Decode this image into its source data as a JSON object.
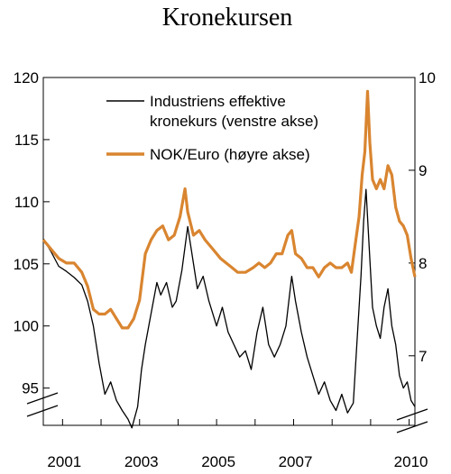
{
  "chart_data": {
    "type": "line",
    "title": "Kronekursen",
    "x_ticks": [
      "2001",
      "2003",
      "2005",
      "2007",
      "2010"
    ],
    "x_range": [
      2000.5,
      2010.15
    ],
    "x_tick_values": [
      2001,
      2003,
      2005,
      2007,
      2010
    ],
    "left_axis": {
      "ticks": [
        95,
        100,
        105,
        110,
        115,
        120
      ],
      "range": [
        92,
        120
      ]
    },
    "right_axis": {
      "ticks": [
        7,
        8,
        9,
        10
      ],
      "range": [
        6.25,
        10
      ]
    },
    "legend_placement": "top-center",
    "series": [
      {
        "name": "Industriens effektive kronekurs (venstre akse)",
        "axis": "left",
        "color": "#000000",
        "points": [
          [
            2000.5,
            107.0
          ],
          [
            2000.7,
            106.0
          ],
          [
            2000.9,
            104.8
          ],
          [
            2001.1,
            104.4
          ],
          [
            2001.3,
            103.9
          ],
          [
            2001.5,
            103.3
          ],
          [
            2001.65,
            102.0
          ],
          [
            2001.8,
            100.0
          ],
          [
            2001.95,
            97.0
          ],
          [
            2002.1,
            94.5
          ],
          [
            2002.25,
            95.5
          ],
          [
            2002.4,
            94.0
          ],
          [
            2002.55,
            93.2
          ],
          [
            2002.7,
            92.5
          ],
          [
            2002.8,
            91.8
          ],
          [
            2002.95,
            93.5
          ],
          [
            2003.05,
            96.5
          ],
          [
            2003.15,
            98.5
          ],
          [
            2003.3,
            101.0
          ],
          [
            2003.45,
            103.5
          ],
          [
            2003.55,
            102.5
          ],
          [
            2003.7,
            103.5
          ],
          [
            2003.85,
            101.5
          ],
          [
            2003.95,
            102.0
          ],
          [
            2004.1,
            104.5
          ],
          [
            2004.25,
            108.0
          ],
          [
            2004.35,
            106.0
          ],
          [
            2004.5,
            103.0
          ],
          [
            2004.65,
            104.0
          ],
          [
            2004.8,
            102.0
          ],
          [
            2005.0,
            100.0
          ],
          [
            2005.15,
            101.5
          ],
          [
            2005.3,
            99.5
          ],
          [
            2005.45,
            98.5
          ],
          [
            2005.6,
            97.5
          ],
          [
            2005.75,
            98.0
          ],
          [
            2005.9,
            96.5
          ],
          [
            2006.05,
            99.5
          ],
          [
            2006.2,
            101.5
          ],
          [
            2006.35,
            98.5
          ],
          [
            2006.5,
            97.5
          ],
          [
            2006.65,
            98.5
          ],
          [
            2006.8,
            100.0
          ],
          [
            2006.95,
            104.0
          ],
          [
            2007.05,
            102.0
          ],
          [
            2007.2,
            99.5
          ],
          [
            2007.35,
            97.5
          ],
          [
            2007.5,
            96.0
          ],
          [
            2007.65,
            94.5
          ],
          [
            2007.8,
            95.5
          ],
          [
            2007.95,
            94.0
          ],
          [
            2008.1,
            93.2
          ],
          [
            2008.25,
            94.5
          ],
          [
            2008.4,
            93.0
          ],
          [
            2008.55,
            93.8
          ],
          [
            2008.65,
            99.0
          ],
          [
            2008.75,
            104.0
          ],
          [
            2008.82,
            108.5
          ],
          [
            2008.88,
            111.0
          ],
          [
            2008.95,
            107.0
          ],
          [
            2009.05,
            101.5
          ],
          [
            2009.15,
            100.0
          ],
          [
            2009.25,
            99.0
          ],
          [
            2009.35,
            101.5
          ],
          [
            2009.45,
            103.0
          ],
          [
            2009.55,
            100.0
          ],
          [
            2009.65,
            98.5
          ],
          [
            2009.75,
            96.0
          ],
          [
            2009.85,
            95.0
          ],
          [
            2009.95,
            95.5
          ],
          [
            2010.05,
            94.0
          ],
          [
            2010.15,
            93.5
          ]
        ]
      },
      {
        "name": "NOK/Euro (høyre akse)",
        "axis": "right",
        "color": "#d98530",
        "points": [
          [
            2000.5,
            8.25
          ],
          [
            2000.7,
            8.15
          ],
          [
            2000.9,
            8.05
          ],
          [
            2001.1,
            8.0
          ],
          [
            2001.3,
            8.0
          ],
          [
            2001.5,
            7.9
          ],
          [
            2001.65,
            7.75
          ],
          [
            2001.8,
            7.5
          ],
          [
            2001.95,
            7.45
          ],
          [
            2002.1,
            7.45
          ],
          [
            2002.25,
            7.5
          ],
          [
            2002.4,
            7.4
          ],
          [
            2002.55,
            7.3
          ],
          [
            2002.7,
            7.3
          ],
          [
            2002.85,
            7.4
          ],
          [
            2003.0,
            7.6
          ],
          [
            2003.15,
            8.1
          ],
          [
            2003.3,
            8.25
          ],
          [
            2003.45,
            8.35
          ],
          [
            2003.6,
            8.4
          ],
          [
            2003.75,
            8.25
          ],
          [
            2003.9,
            8.3
          ],
          [
            2004.05,
            8.5
          ],
          [
            2004.18,
            8.8
          ],
          [
            2004.25,
            8.55
          ],
          [
            2004.4,
            8.3
          ],
          [
            2004.55,
            8.35
          ],
          [
            2004.7,
            8.25
          ],
          [
            2004.9,
            8.15
          ],
          [
            2005.1,
            8.05
          ],
          [
            2005.25,
            8.0
          ],
          [
            2005.4,
            7.95
          ],
          [
            2005.55,
            7.9
          ],
          [
            2005.75,
            7.9
          ],
          [
            2005.95,
            7.95
          ],
          [
            2006.1,
            8.0
          ],
          [
            2006.25,
            7.95
          ],
          [
            2006.4,
            8.0
          ],
          [
            2006.55,
            8.1
          ],
          [
            2006.7,
            8.1
          ],
          [
            2006.85,
            8.3
          ],
          [
            2006.95,
            8.35
          ],
          [
            2007.05,
            8.1
          ],
          [
            2007.2,
            8.05
          ],
          [
            2007.35,
            7.95
          ],
          [
            2007.5,
            7.95
          ],
          [
            2007.65,
            7.85
          ],
          [
            2007.8,
            7.95
          ],
          [
            2007.95,
            8.0
          ],
          [
            2008.1,
            7.95
          ],
          [
            2008.25,
            7.95
          ],
          [
            2008.4,
            8.0
          ],
          [
            2008.5,
            7.9
          ],
          [
            2008.6,
            8.2
          ],
          [
            2008.7,
            8.5
          ],
          [
            2008.78,
            8.95
          ],
          [
            2008.85,
            9.2
          ],
          [
            2008.92,
            9.85
          ],
          [
            2008.98,
            9.3
          ],
          [
            2009.05,
            8.9
          ],
          [
            2009.15,
            8.8
          ],
          [
            2009.25,
            8.9
          ],
          [
            2009.35,
            8.8
          ],
          [
            2009.45,
            9.05
          ],
          [
            2009.55,
            8.95
          ],
          [
            2009.65,
            8.6
          ],
          [
            2009.75,
            8.45
          ],
          [
            2009.85,
            8.4
          ],
          [
            2009.95,
            8.3
          ],
          [
            2010.05,
            8.05
          ],
          [
            2010.15,
            7.85
          ]
        ]
      }
    ]
  }
}
